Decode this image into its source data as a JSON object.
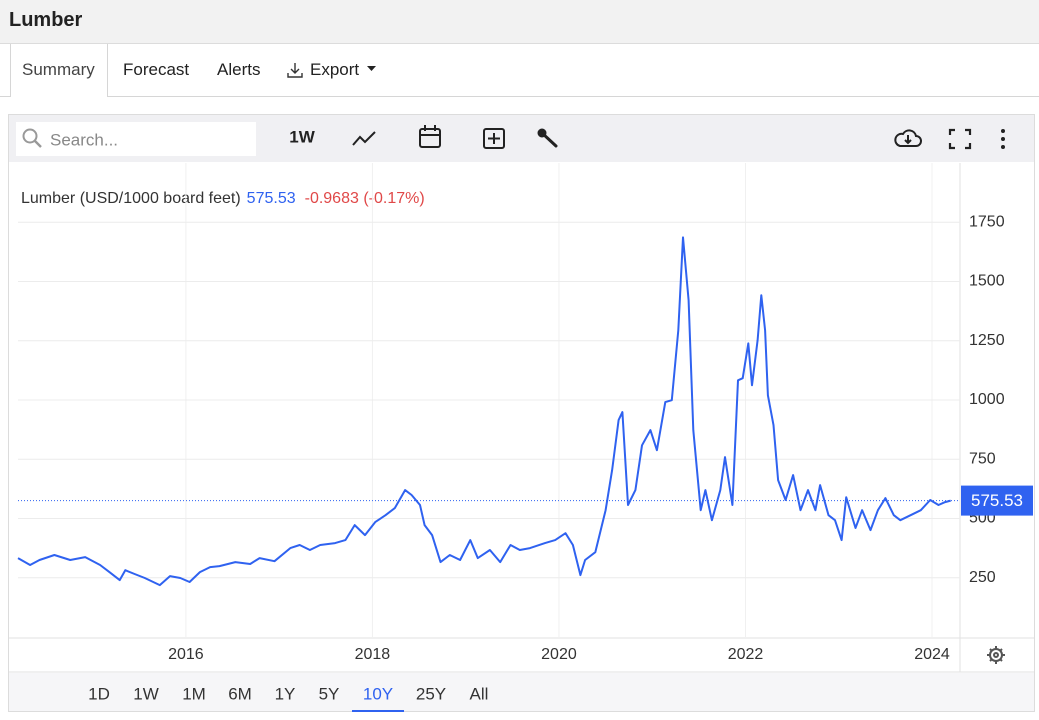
{
  "header": {
    "title": "Lumber"
  },
  "tabs": [
    "Summary",
    "Forecast",
    "Alerts",
    "Export"
  ],
  "toolbar": {
    "search_placeholder": "Search...",
    "interval": "1W"
  },
  "chart_data": {
    "type": "line",
    "legend_title": "Lumber (USD/1000 board feet)",
    "last_value": 575.53,
    "change_text": "-0.9683 (-0.17%)",
    "xlim": [
      2014.2,
      2024.3
    ],
    "xticks": [
      2016,
      2018,
      2020,
      2022,
      2024
    ],
    "ylim": [
      0,
      2000
    ],
    "yticks": [
      250,
      500,
      750,
      1000,
      1250,
      1500,
      1750
    ],
    "grid": true,
    "series": [
      {
        "name": "Lumber",
        "color": "#2f62f0",
        "x": [
          2014.2,
          2014.33,
          2014.43,
          2014.59,
          2014.76,
          2014.92,
          2015.08,
          2015.18,
          2015.29,
          2015.35,
          2015.45,
          2015.56,
          2015.72,
          2015.83,
          2015.94,
          2016.04,
          2016.15,
          2016.26,
          2016.36,
          2016.53,
          2016.69,
          2016.79,
          2016.95,
          2017.12,
          2017.22,
          2017.33,
          2017.44,
          2017.6,
          2017.71,
          2017.81,
          2017.92,
          2018.03,
          2018.14,
          2018.24,
          2018.35,
          2018.42,
          2018.51,
          2018.56,
          2018.64,
          2018.73,
          2018.83,
          2018.94,
          2019.05,
          2019.13,
          2019.26,
          2019.37,
          2019.48,
          2019.58,
          2019.69,
          2019.85,
          2019.96,
          2020.07,
          2020.15,
          2020.23,
          2020.28,
          2020.39,
          2020.5,
          2020.57,
          2020.64,
          2020.68,
          2020.74,
          2020.82,
          2020.89,
          2020.98,
          2021.05,
          2021.14,
          2021.21,
          2021.28,
          2021.33,
          2021.39,
          2021.44,
          2021.52,
          2021.57,
          2021.64,
          2021.73,
          2021.78,
          2021.86,
          2021.92,
          2021.97,
          2022.03,
          2022.07,
          2022.13,
          2022.17,
          2022.21,
          2022.24,
          2022.3,
          2022.35,
          2022.43,
          2022.51,
          2022.59,
          2022.67,
          2022.75,
          2022.8,
          2022.89,
          2022.96,
          2023.03,
          2023.08,
          2023.18,
          2023.25,
          2023.34,
          2023.42,
          2023.5,
          2023.59,
          2023.66,
          2023.77,
          2023.88,
          2023.98,
          2024.07,
          2024.14,
          2024.2
        ],
        "values": [
          333,
          304,
          325,
          346,
          325,
          337,
          304,
          274,
          240,
          282,
          266,
          249,
          219,
          257,
          249,
          232,
          274,
          295,
          299,
          316,
          308,
          333,
          320,
          375,
          388,
          367,
          388,
          396,
          409,
          472,
          430,
          485,
          514,
          544,
          620,
          599,
          557,
          472,
          430,
          316,
          346,
          325,
          409,
          333,
          367,
          316,
          388,
          367,
          375,
          396,
          409,
          438,
          388,
          261,
          325,
          358,
          535,
          704,
          915,
          949,
          557,
          620,
          809,
          873,
          788,
          991,
          999,
          1294,
          1686,
          1421,
          873,
          535,
          620,
          493,
          620,
          759,
          557,
          1083,
          1092,
          1239,
          1062,
          1252,
          1442,
          1294,
          1020,
          894,
          662,
          578,
          683,
          535,
          620,
          535,
          641,
          514,
          493,
          409,
          590,
          460,
          535,
          451,
          535,
          586,
          514,
          493,
          514,
          535,
          578,
          557,
          569,
          575.53
        ]
      }
    ]
  },
  "range_selector": {
    "buttons": [
      "1D",
      "1W",
      "1M",
      "6M",
      "1Y",
      "5Y",
      "10Y",
      "25Y",
      "All"
    ],
    "active": "10Y"
  }
}
